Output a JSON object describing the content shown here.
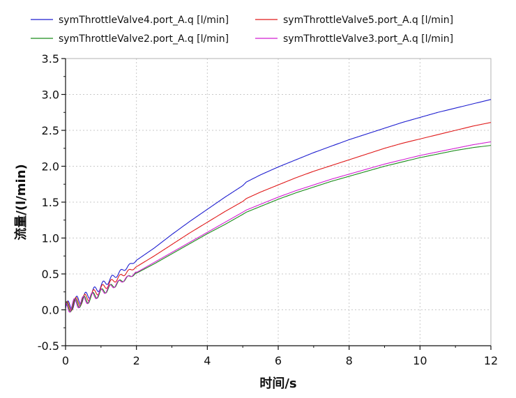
{
  "chart_data": {
    "type": "line",
    "xlabel": "时间/s",
    "ylabel": "流量/(l/min)",
    "xlim": [
      0,
      12
    ],
    "ylim": [
      -0.5,
      3.5
    ],
    "xticks": [
      "0",
      "2",
      "4",
      "6",
      "8",
      "10",
      "12"
    ],
    "yticks": [
      "-0.5",
      "0.0",
      "0.5",
      "1.0",
      "1.5",
      "2.0",
      "2.5",
      "3.0",
      "3.5"
    ],
    "grid": true,
    "legend_position": "top",
    "series": [
      {
        "name": "symThrottleValve4.port_A.q [l/min]",
        "color": "#1f1fd0",
        "x": [
          0,
          0.25,
          0.5,
          0.75,
          1.0,
          1.25,
          1.5,
          1.75,
          2.0,
          2.5,
          3.0,
          3.5,
          4.0,
          4.5,
          5.0,
          5.1,
          5.5,
          6.0,
          6.5,
          7.0,
          7.5,
          8.0,
          8.5,
          9.0,
          9.5,
          10.0,
          10.5,
          11.0,
          11.5,
          12.0
        ],
        "values": [
          0.02,
          0.1,
          0.16,
          0.24,
          0.33,
          0.42,
          0.51,
          0.6,
          0.69,
          0.86,
          1.05,
          1.23,
          1.4,
          1.57,
          1.73,
          1.78,
          1.88,
          1.99,
          2.09,
          2.19,
          2.28,
          2.37,
          2.45,
          2.53,
          2.61,
          2.68,
          2.75,
          2.81,
          2.87,
          2.93
        ]
      },
      {
        "name": "symThrottleValve5.port_A.q [l/min]",
        "color": "#e01a1a",
        "x": [
          0,
          0.25,
          0.5,
          0.75,
          1.0,
          1.25,
          1.5,
          1.75,
          2.0,
          2.5,
          3.0,
          3.5,
          4.0,
          4.5,
          5.0,
          5.1,
          5.5,
          6.0,
          6.5,
          7.0,
          7.5,
          8.0,
          8.5,
          9.0,
          9.5,
          10.0,
          10.5,
          11.0,
          11.5,
          12.0
        ],
        "values": [
          0.02,
          0.09,
          0.14,
          0.21,
          0.29,
          0.37,
          0.45,
          0.53,
          0.6,
          0.75,
          0.91,
          1.07,
          1.22,
          1.37,
          1.51,
          1.55,
          1.64,
          1.74,
          1.84,
          1.93,
          2.01,
          2.09,
          2.17,
          2.25,
          2.32,
          2.38,
          2.44,
          2.5,
          2.56,
          2.61
        ]
      },
      {
        "name": "symThrottleValve2.port_A.q [l/min]",
        "color": "#1a8c1a",
        "x": [
          0,
          0.25,
          0.5,
          0.75,
          1.0,
          1.25,
          1.5,
          1.75,
          2.0,
          2.5,
          3.0,
          3.5,
          4.0,
          4.5,
          5.0,
          5.1,
          5.5,
          6.0,
          6.5,
          7.0,
          7.5,
          8.0,
          8.5,
          9.0,
          9.5,
          10.0,
          10.5,
          11.0,
          11.5,
          12.0
        ],
        "values": [
          0.02,
          0.08,
          0.12,
          0.18,
          0.24,
          0.31,
          0.38,
          0.45,
          0.51,
          0.64,
          0.78,
          0.92,
          1.06,
          1.19,
          1.33,
          1.36,
          1.44,
          1.54,
          1.63,
          1.71,
          1.79,
          1.86,
          1.93,
          2.0,
          2.06,
          2.12,
          2.17,
          2.22,
          2.26,
          2.29
        ]
      },
      {
        "name": "symThrottleValve3.port_A.q [l/min]",
        "color": "#d21fd2",
        "x": [
          0,
          0.25,
          0.5,
          0.75,
          1.0,
          1.25,
          1.5,
          1.75,
          2.0,
          2.5,
          3.0,
          3.5,
          4.0,
          4.5,
          5.0,
          5.1,
          5.5,
          6.0,
          6.5,
          7.0,
          7.5,
          8.0,
          8.5,
          9.0,
          9.5,
          10.0,
          10.5,
          11.0,
          11.5,
          12.0
        ],
        "values": [
          0.02,
          0.08,
          0.12,
          0.18,
          0.24,
          0.31,
          0.38,
          0.45,
          0.52,
          0.66,
          0.8,
          0.94,
          1.08,
          1.22,
          1.36,
          1.39,
          1.47,
          1.57,
          1.66,
          1.74,
          1.82,
          1.89,
          1.96,
          2.03,
          2.09,
          2.15,
          2.2,
          2.25,
          2.3,
          2.34
        ]
      }
    ]
  }
}
